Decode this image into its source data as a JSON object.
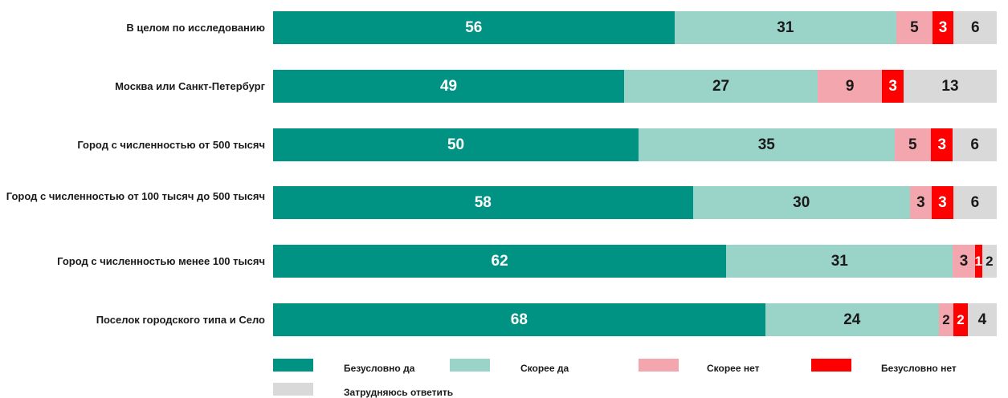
{
  "chart_data": {
    "type": "bar",
    "orientation": "horizontal",
    "stacked": true,
    "title": "",
    "xlabel": "",
    "ylabel": "",
    "legend_position": "bottom",
    "grid": false,
    "categories": [
      "В целом по исследованию",
      "Москва или Санкт-Петербург",
      "Город с численностью от 500 тысяч",
      "Город с численностью от 100 тысяч до 500 тысяч",
      "Город с численностью менее 100 тысяч",
      "Поселок городского типа и Село"
    ],
    "series": [
      {
        "name": "Безусловно да",
        "color": "#009383",
        "text_color": "#ffffff",
        "values": [
          56,
          49,
          50,
          58,
          62,
          68
        ]
      },
      {
        "name": "Скорее да",
        "color": "#9ad3c8",
        "text_color": "#1a1a1a",
        "values": [
          31,
          27,
          35,
          30,
          31,
          24
        ]
      },
      {
        "name": "Скорее нет",
        "color": "#f4a6ae",
        "text_color": "#1a1a1a",
        "values": [
          5,
          9,
          5,
          3,
          3,
          2
        ]
      },
      {
        "name": "Безусловно нет",
        "color": "#ff0000",
        "text_color": "#ffffff",
        "values": [
          3,
          3,
          3,
          3,
          1,
          2
        ]
      },
      {
        "name": "Затрудняюсь ответить",
        "color": "#d9d9d9",
        "text_color": "#1a1a1a",
        "values": [
          6,
          13,
          6,
          6,
          2,
          4
        ]
      }
    ]
  }
}
